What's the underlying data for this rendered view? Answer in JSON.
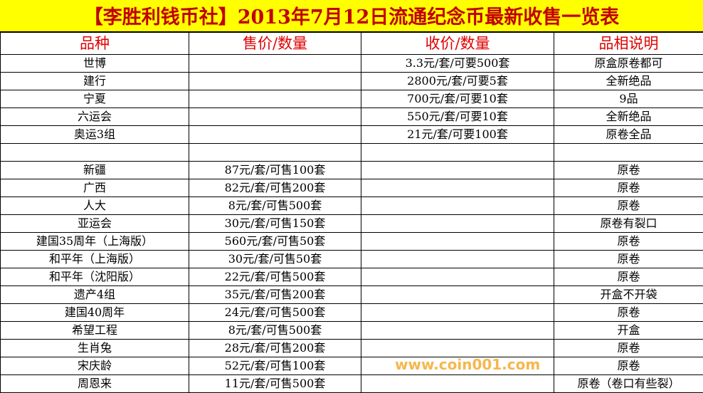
{
  "title": "【李胜利钱币社】2013年7月12日流通纪念币最新收售一览表",
  "headers": [
    "品种",
    "售价/数量",
    "收价/数量",
    "品相说明"
  ],
  "rows": [
    [
      "世博",
      "",
      "3.3元/套/可要500套",
      "原盒原卷都可"
    ],
    [
      "建行",
      "",
      "2800元/套/可要5套",
      "全新绝品"
    ],
    [
      "宁夏",
      "",
      "700元/套/可要10套",
      "9品"
    ],
    [
      "六运会",
      "",
      "550元/套/可要10套",
      "全新绝品"
    ],
    [
      "奥运3组",
      "",
      "21元/套/可要100套",
      "原卷全品"
    ],
    [
      "",
      "",
      "",
      ""
    ],
    [
      "新疆",
      "87元/套/可售100套",
      "",
      "原卷"
    ],
    [
      "广西",
      "82元/套/可售200套",
      "",
      "原卷"
    ],
    [
      "人大",
      "8元/套/可售500套",
      "",
      "原卷"
    ],
    [
      "亚运会",
      "30元/套/可售150套",
      "",
      "原卷有裂口"
    ],
    [
      "建国35周年（上海版）",
      "560元/套/可售50套",
      "",
      "原卷"
    ],
    [
      "和平年（上海版）",
      "30元/套/可售50套",
      "",
      "原卷"
    ],
    [
      "和平年（沈阳版）",
      "22元/套/可售500套",
      "",
      "原卷"
    ],
    [
      "遗产4组",
      "35元/套/可售200套",
      "",
      "开盒不开袋"
    ],
    [
      "建国40周年",
      "24元/套/可售500套",
      "",
      "原卷"
    ],
    [
      "希望工程",
      "8元/套/可售500套",
      "",
      "开盒"
    ],
    [
      "生肖兔",
      "28元/套/可售200套",
      "",
      "原卷"
    ],
    [
      "宋庆龄",
      "52元/套/可售100套",
      "",
      "原卷"
    ],
    [
      "周恩来",
      "11元/套/可售500套",
      "",
      "原卷（卷口有些裂）"
    ]
  ],
  "watermark": "www.coin001.com",
  "colors": {
    "title_bg": "#ffff00",
    "title_text": "#c00000",
    "header_text": "#e00000"
  }
}
